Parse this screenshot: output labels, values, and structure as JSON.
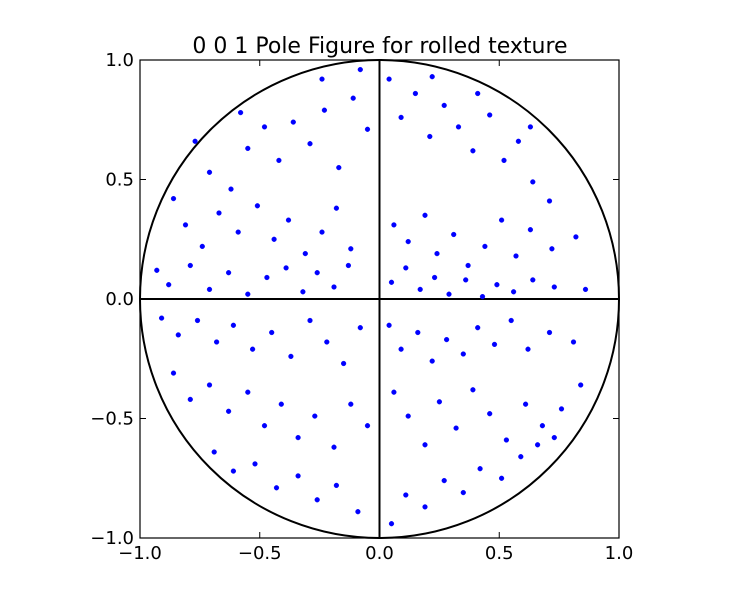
{
  "chart_data": {
    "type": "scatter",
    "title": "0 0 1 Pole Figure for rolled texture",
    "xlabel": "",
    "ylabel": "",
    "xlim": [
      -1.0,
      1.0
    ],
    "ylim": [
      -1.0,
      1.0
    ],
    "x_ticks": [
      -1.0,
      -0.5,
      0.0,
      0.5,
      1.0
    ],
    "y_ticks": [
      -1.0,
      -0.5,
      0.0,
      0.5,
      1.0
    ],
    "x_tick_labels": [
      "−1.0",
      "−0.5",
      "0.0",
      "0.5",
      "1.0"
    ],
    "y_tick_labels": [
      "−1.0",
      "−0.5",
      "0.0",
      "0.5",
      "1.0"
    ],
    "grid": false,
    "reference_circle_radius": 1.0,
    "reference_axes": true,
    "marker_color": "#0000ff",
    "line_color": "#000000",
    "series": [
      {
        "points": [
          [
            -0.77,
            0.66
          ],
          [
            -0.71,
            0.53
          ],
          [
            -0.62,
            0.46
          ],
          [
            -0.55,
            0.63
          ],
          [
            -0.48,
            0.72
          ],
          [
            -0.42,
            0.58
          ],
          [
            -0.36,
            0.74
          ],
          [
            -0.29,
            0.65
          ],
          [
            -0.23,
            0.79
          ],
          [
            -0.17,
            0.55
          ],
          [
            -0.11,
            0.84
          ],
          [
            -0.05,
            0.71
          ],
          [
            0.04,
            0.92
          ],
          [
            0.09,
            0.76
          ],
          [
            0.15,
            0.86
          ],
          [
            0.21,
            0.68
          ],
          [
            0.27,
            0.81
          ],
          [
            0.33,
            0.72
          ],
          [
            0.39,
            0.62
          ],
          [
            0.46,
            0.77
          ],
          [
            0.52,
            0.58
          ],
          [
            0.58,
            0.66
          ],
          [
            0.64,
            0.49
          ],
          [
            0.71,
            0.41
          ],
          [
            -0.86,
            0.42
          ],
          [
            -0.81,
            0.31
          ],
          [
            -0.74,
            0.22
          ],
          [
            -0.67,
            0.36
          ],
          [
            -0.59,
            0.28
          ],
          [
            -0.51,
            0.39
          ],
          [
            -0.44,
            0.25
          ],
          [
            -0.38,
            0.33
          ],
          [
            -0.31,
            0.19
          ],
          [
            -0.24,
            0.28
          ],
          [
            -0.18,
            0.38
          ],
          [
            -0.12,
            0.21
          ],
          [
            0.06,
            0.31
          ],
          [
            0.12,
            0.24
          ],
          [
            0.19,
            0.35
          ],
          [
            0.24,
            0.19
          ],
          [
            0.31,
            0.27
          ],
          [
            0.37,
            0.14
          ],
          [
            0.44,
            0.22
          ],
          [
            0.51,
            0.33
          ],
          [
            0.57,
            0.18
          ],
          [
            0.63,
            0.29
          ],
          [
            0.72,
            0.21
          ],
          [
            0.82,
            0.26
          ],
          [
            -0.93,
            0.12
          ],
          [
            -0.88,
            0.06
          ],
          [
            -0.79,
            0.14
          ],
          [
            -0.71,
            0.04
          ],
          [
            -0.63,
            0.11
          ],
          [
            -0.55,
            0.02
          ],
          [
            -0.47,
            0.09
          ],
          [
            -0.39,
            0.13
          ],
          [
            -0.32,
            0.03
          ],
          [
            -0.26,
            0.11
          ],
          [
            -0.19,
            0.05
          ],
          [
            -0.13,
            0.14
          ],
          [
            0.05,
            0.07
          ],
          [
            0.11,
            0.13
          ],
          [
            0.17,
            0.04
          ],
          [
            0.23,
            0.09
          ],
          [
            0.29,
            0.02
          ],
          [
            0.36,
            0.08
          ],
          [
            0.43,
            0.01
          ],
          [
            0.49,
            0.06
          ],
          [
            0.56,
            0.03
          ],
          [
            0.64,
            0.08
          ],
          [
            0.73,
            0.05
          ],
          [
            0.86,
            0.04
          ],
          [
            -0.91,
            -0.08
          ],
          [
            -0.84,
            -0.15
          ],
          [
            -0.76,
            -0.09
          ],
          [
            -0.68,
            -0.18
          ],
          [
            -0.61,
            -0.11
          ],
          [
            -0.53,
            -0.21
          ],
          [
            -0.45,
            -0.14
          ],
          [
            -0.37,
            -0.24
          ],
          [
            -0.29,
            -0.09
          ],
          [
            -0.22,
            -0.18
          ],
          [
            -0.15,
            -0.27
          ],
          [
            -0.08,
            -0.12
          ],
          [
            0.04,
            -0.11
          ],
          [
            0.09,
            -0.21
          ],
          [
            0.16,
            -0.14
          ],
          [
            0.22,
            -0.26
          ],
          [
            0.28,
            -0.17
          ],
          [
            0.35,
            -0.23
          ],
          [
            0.41,
            -0.12
          ],
          [
            0.48,
            -0.19
          ],
          [
            0.55,
            -0.09
          ],
          [
            0.62,
            -0.21
          ],
          [
            0.71,
            -0.14
          ],
          [
            0.81,
            -0.18
          ],
          [
            -0.86,
            -0.31
          ],
          [
            -0.79,
            -0.42
          ],
          [
            -0.71,
            -0.36
          ],
          [
            -0.63,
            -0.47
          ],
          [
            -0.55,
            -0.39
          ],
          [
            -0.48,
            -0.53
          ],
          [
            -0.41,
            -0.44
          ],
          [
            -0.34,
            -0.58
          ],
          [
            -0.27,
            -0.49
          ],
          [
            -0.19,
            -0.62
          ],
          [
            -0.12,
            -0.44
          ],
          [
            -0.05,
            -0.53
          ],
          [
            0.06,
            -0.39
          ],
          [
            0.12,
            -0.49
          ],
          [
            0.19,
            -0.61
          ],
          [
            0.25,
            -0.43
          ],
          [
            0.32,
            -0.54
          ],
          [
            0.39,
            -0.38
          ],
          [
            0.46,
            -0.48
          ],
          [
            0.53,
            -0.59
          ],
          [
            0.61,
            -0.44
          ],
          [
            0.68,
            -0.53
          ],
          [
            0.76,
            -0.46
          ],
          [
            0.84,
            -0.36
          ],
          [
            -0.69,
            -0.64
          ],
          [
            -0.61,
            -0.72
          ],
          [
            -0.52,
            -0.69
          ],
          [
            -0.43,
            -0.79
          ],
          [
            -0.34,
            -0.74
          ],
          [
            -0.26,
            -0.84
          ],
          [
            -0.18,
            -0.78
          ],
          [
            -0.09,
            -0.89
          ],
          [
            0.05,
            -0.94
          ],
          [
            0.11,
            -0.82
          ],
          [
            0.19,
            -0.87
          ],
          [
            0.27,
            -0.76
          ],
          [
            0.35,
            -0.81
          ],
          [
            0.42,
            -0.71
          ],
          [
            0.51,
            -0.75
          ],
          [
            0.59,
            -0.66
          ],
          [
            0.66,
            -0.61
          ],
          [
            0.73,
            -0.58
          ],
          [
            -0.24,
            0.92
          ],
          [
            -0.08,
            0.96
          ],
          [
            0.22,
            0.93
          ],
          [
            0.41,
            0.86
          ],
          [
            -0.58,
            0.78
          ],
          [
            0.63,
            0.72
          ]
        ]
      }
    ]
  }
}
